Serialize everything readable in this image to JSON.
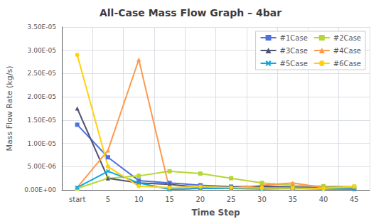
{
  "chart_data": {
    "type": "line",
    "title": "All-Case Mass Flow Graph – 4bar",
    "x_label": "Time Step",
    "y_label": "Mass Flow Rate (kg/s)",
    "categories": [
      "start",
      "5",
      "10",
      "15",
      "20",
      "25",
      "30",
      "35",
      "40",
      "45"
    ],
    "series": [
      {
        "name": "#1Case",
        "marker": "square",
        "values": [
          1.4e-05,
          7e-06,
          2e-06,
          1.5e-06,
          1e-06,
          7e-07,
          5e-07,
          4e-07,
          3e-07,
          2e-07
        ]
      },
      {
        "name": "#2Case",
        "marker": "square",
        "values": [
          3e-07,
          2.5e-06,
          3e-06,
          4e-06,
          3.5e-06,
          2.5e-06,
          1.5e-06,
          1e-06,
          8e-07,
          7e-07
        ]
      },
      {
        "name": "#3Case",
        "marker": "triangle",
        "values": [
          1.75e-05,
          2.5e-06,
          1.5e-06,
          1.2e-06,
          5e-07,
          6e-07,
          8e-07,
          6e-07,
          5e-07,
          5e-07
        ]
      },
      {
        "name": "#4Case",
        "marker": "triangle",
        "values": [
          5e-07,
          8.5e-06,
          2.8e-05,
          1e-07,
          4e-07,
          4e-07,
          1e-06,
          1.5e-06,
          5e-07,
          5e-07
        ]
      },
      {
        "name": "#5Case",
        "marker": "x",
        "values": [
          5e-07,
          4e-06,
          1.5e-06,
          1e-07,
          3e-07,
          3e-07,
          2e-07,
          3e-07,
          2e-07,
          2e-07
        ]
      },
      {
        "name": "#6Case",
        "marker": "circle",
        "values": [
          2.9e-05,
          5e-06,
          8e-07,
          5e-07,
          7e-07,
          5e-07,
          4e-07,
          4e-07,
          3e-07,
          7e-07
        ]
      }
    ],
    "ylim": [
      0,
      3.5e-05
    ],
    "yticks": [
      {
        "value": 0.0,
        "label": "0.00E+00"
      },
      {
        "value": 5e-06,
        "label": "5.00E-06"
      },
      {
        "value": 1e-05,
        "label": "1.00E-05"
      },
      {
        "value": 1.5e-05,
        "label": "1.50E-05"
      },
      {
        "value": 2e-05,
        "label": "2.00E-05"
      },
      {
        "value": 2.5e-05,
        "label": "2.50E-05"
      },
      {
        "value": 3e-05,
        "label": "3.00E-05"
      },
      {
        "value": 3.5e-05,
        "label": "3.50E-05"
      }
    ],
    "grid": true,
    "legend": "upper right"
  }
}
